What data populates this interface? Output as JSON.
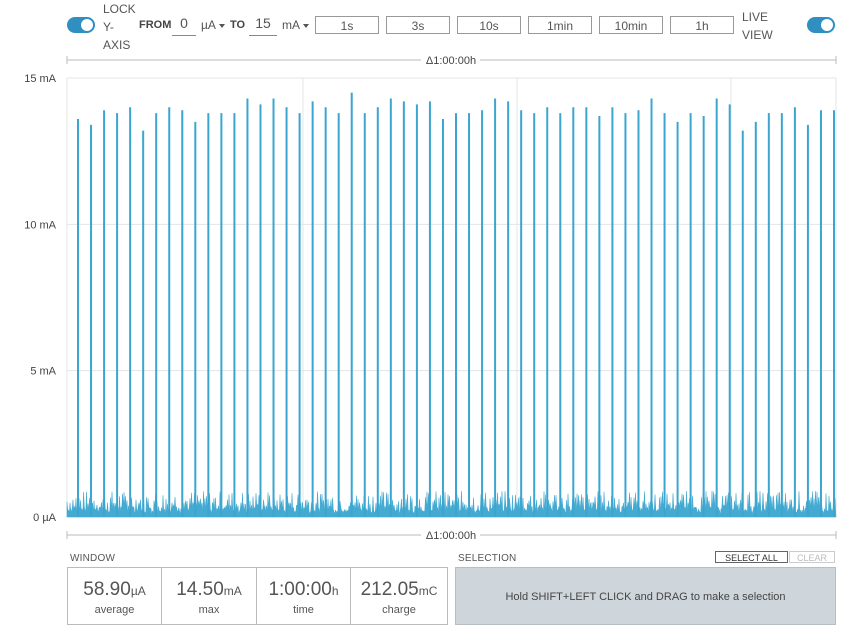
{
  "toolbar": {
    "lock_y_axis": {
      "line1": "LOCK",
      "line2": "Y-",
      "line3": "AXIS",
      "enabled": true
    },
    "from_label": "FROM",
    "from_value": "0",
    "from_unit": "µA",
    "to_label": "TO",
    "to_value": "15",
    "to_unit": "mA",
    "time_buttons": [
      "1s",
      "3s",
      "10s",
      "1min",
      "10min",
      "1h"
    ],
    "live_view": {
      "line1": "LIVE",
      "line2": "VIEW",
      "enabled": true
    }
  },
  "chart": {
    "window_top": "Δ1:00:00h",
    "window_bottom": "Δ1:00:00h",
    "y_tick_labels": [
      "15 mA",
      "10 mA",
      "5 mA",
      "0 µA"
    ],
    "trace_color": "#3aa6d0"
  },
  "chart_data": {
    "type": "line",
    "title": "",
    "xlabel": "",
    "ylabel": "",
    "ylim": [
      0,
      15
    ],
    "y_unit": "mA",
    "y_ticks": [
      0,
      5,
      10,
      15
    ],
    "baseline_noise_max_mA": 0.9,
    "spikes_mA": [
      13.6,
      13.4,
      13.9,
      13.8,
      14.0,
      13.2,
      13.8,
      14.0,
      13.9,
      13.5,
      13.8,
      13.8,
      13.8,
      14.3,
      14.1,
      14.3,
      14.0,
      13.8,
      14.2,
      14.0,
      13.8,
      14.5,
      13.8,
      14.0,
      14.3,
      14.2,
      14.1,
      14.2,
      13.6,
      13.8,
      13.8,
      13.9,
      14.3,
      14.2,
      13.9,
      13.8,
      14.0,
      13.8,
      14.0,
      14.0,
      13.7,
      14.0,
      13.8,
      13.9,
      14.3,
      13.8,
      13.5,
      13.8,
      13.7,
      14.3,
      14.1,
      13.2,
      13.5,
      13.8,
      13.8,
      14.0,
      13.4,
      13.9,
      13.9
    ]
  },
  "window": {
    "title": "WINDOW",
    "stats": [
      {
        "value": "58.90",
        "unit": "µA",
        "name": "average"
      },
      {
        "value": "14.50",
        "unit": "mA",
        "name": "max"
      },
      {
        "value": "1:00:00",
        "unit": "h",
        "name": "time"
      },
      {
        "value": "212.05",
        "unit": "mC",
        "name": "charge"
      }
    ]
  },
  "selection": {
    "title": "SELECTION",
    "select_all": "SELECT ALL",
    "clear": "CLEAR",
    "hint": "Hold SHIFT+LEFT CLICK and DRAG to make a selection"
  }
}
